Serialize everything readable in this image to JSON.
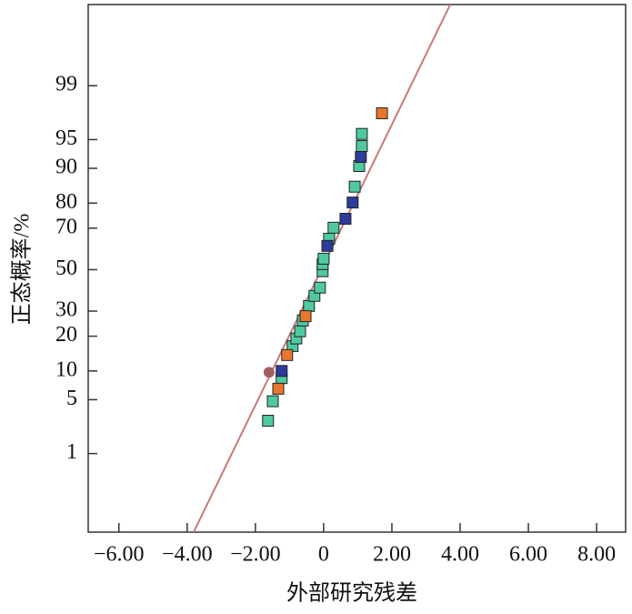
{
  "chart_data": {
    "type": "normal-probability",
    "xlabel": "外部研究残差",
    "ylabel": "正态概率/%",
    "xlim": [
      -6.9,
      8.85
    ],
    "xticks": [
      {
        "value": -6,
        "label": "−6.00"
      },
      {
        "value": -4,
        "label": "−4.00"
      },
      {
        "value": -2,
        "label": "−2.00"
      },
      0,
      {
        "value": 2,
        "label": "2.00"
      },
      {
        "value": 4,
        "label": "4.00"
      },
      {
        "value": 6,
        "label": "6.00"
      },
      {
        "value": 8,
        "label": "8.00"
      }
    ],
    "ylim": [
      0.045,
      99.96
    ],
    "yticks": [
      1,
      5,
      10,
      20,
      30,
      50,
      70,
      80,
      90,
      95,
      99
    ],
    "reference_line": {
      "color": "#c87878",
      "x": [
        -3.81,
        3.71
      ],
      "y": [
        0.045,
        99.96
      ]
    },
    "series": [
      {
        "color": "#4fc9a0",
        "marker": "square",
        "x": [
          -1.63,
          -1.49,
          -1.23,
          -0.91,
          -0.8,
          -0.69,
          -0.61,
          -0.43,
          -0.27,
          -0.11,
          -0.03,
          -0.03,
          0,
          0.16,
          0.29,
          0.91,
          1.04,
          1.12,
          1.12
        ],
        "y": [
          2.8,
          4.8,
          8.5,
          16.7,
          19.2,
          21.8,
          26,
          32.3,
          37,
          41,
          49.2,
          52.8,
          55.5,
          65.2,
          70.2,
          85.3,
          90.5,
          94.1,
          95.7
        ]
      },
      {
        "color": "#e8772e",
        "marker": "square",
        "x": [
          -1.33,
          -1.07,
          -0.53,
          1.71
        ],
        "y": [
          6.6,
          14,
          27.8,
          97.6
        ]
      },
      {
        "color": "#2e3a9c",
        "marker": "square",
        "x": [
          -1.23,
          0.11,
          0.64,
          0.85,
          1.09
        ],
        "y": [
          10,
          61.8,
          74,
          80.2,
          92.3
        ]
      },
      {
        "color": "#a06060",
        "marker": "circle",
        "x": [
          -1.6
        ],
        "y": [
          9.7
        ]
      }
    ]
  }
}
